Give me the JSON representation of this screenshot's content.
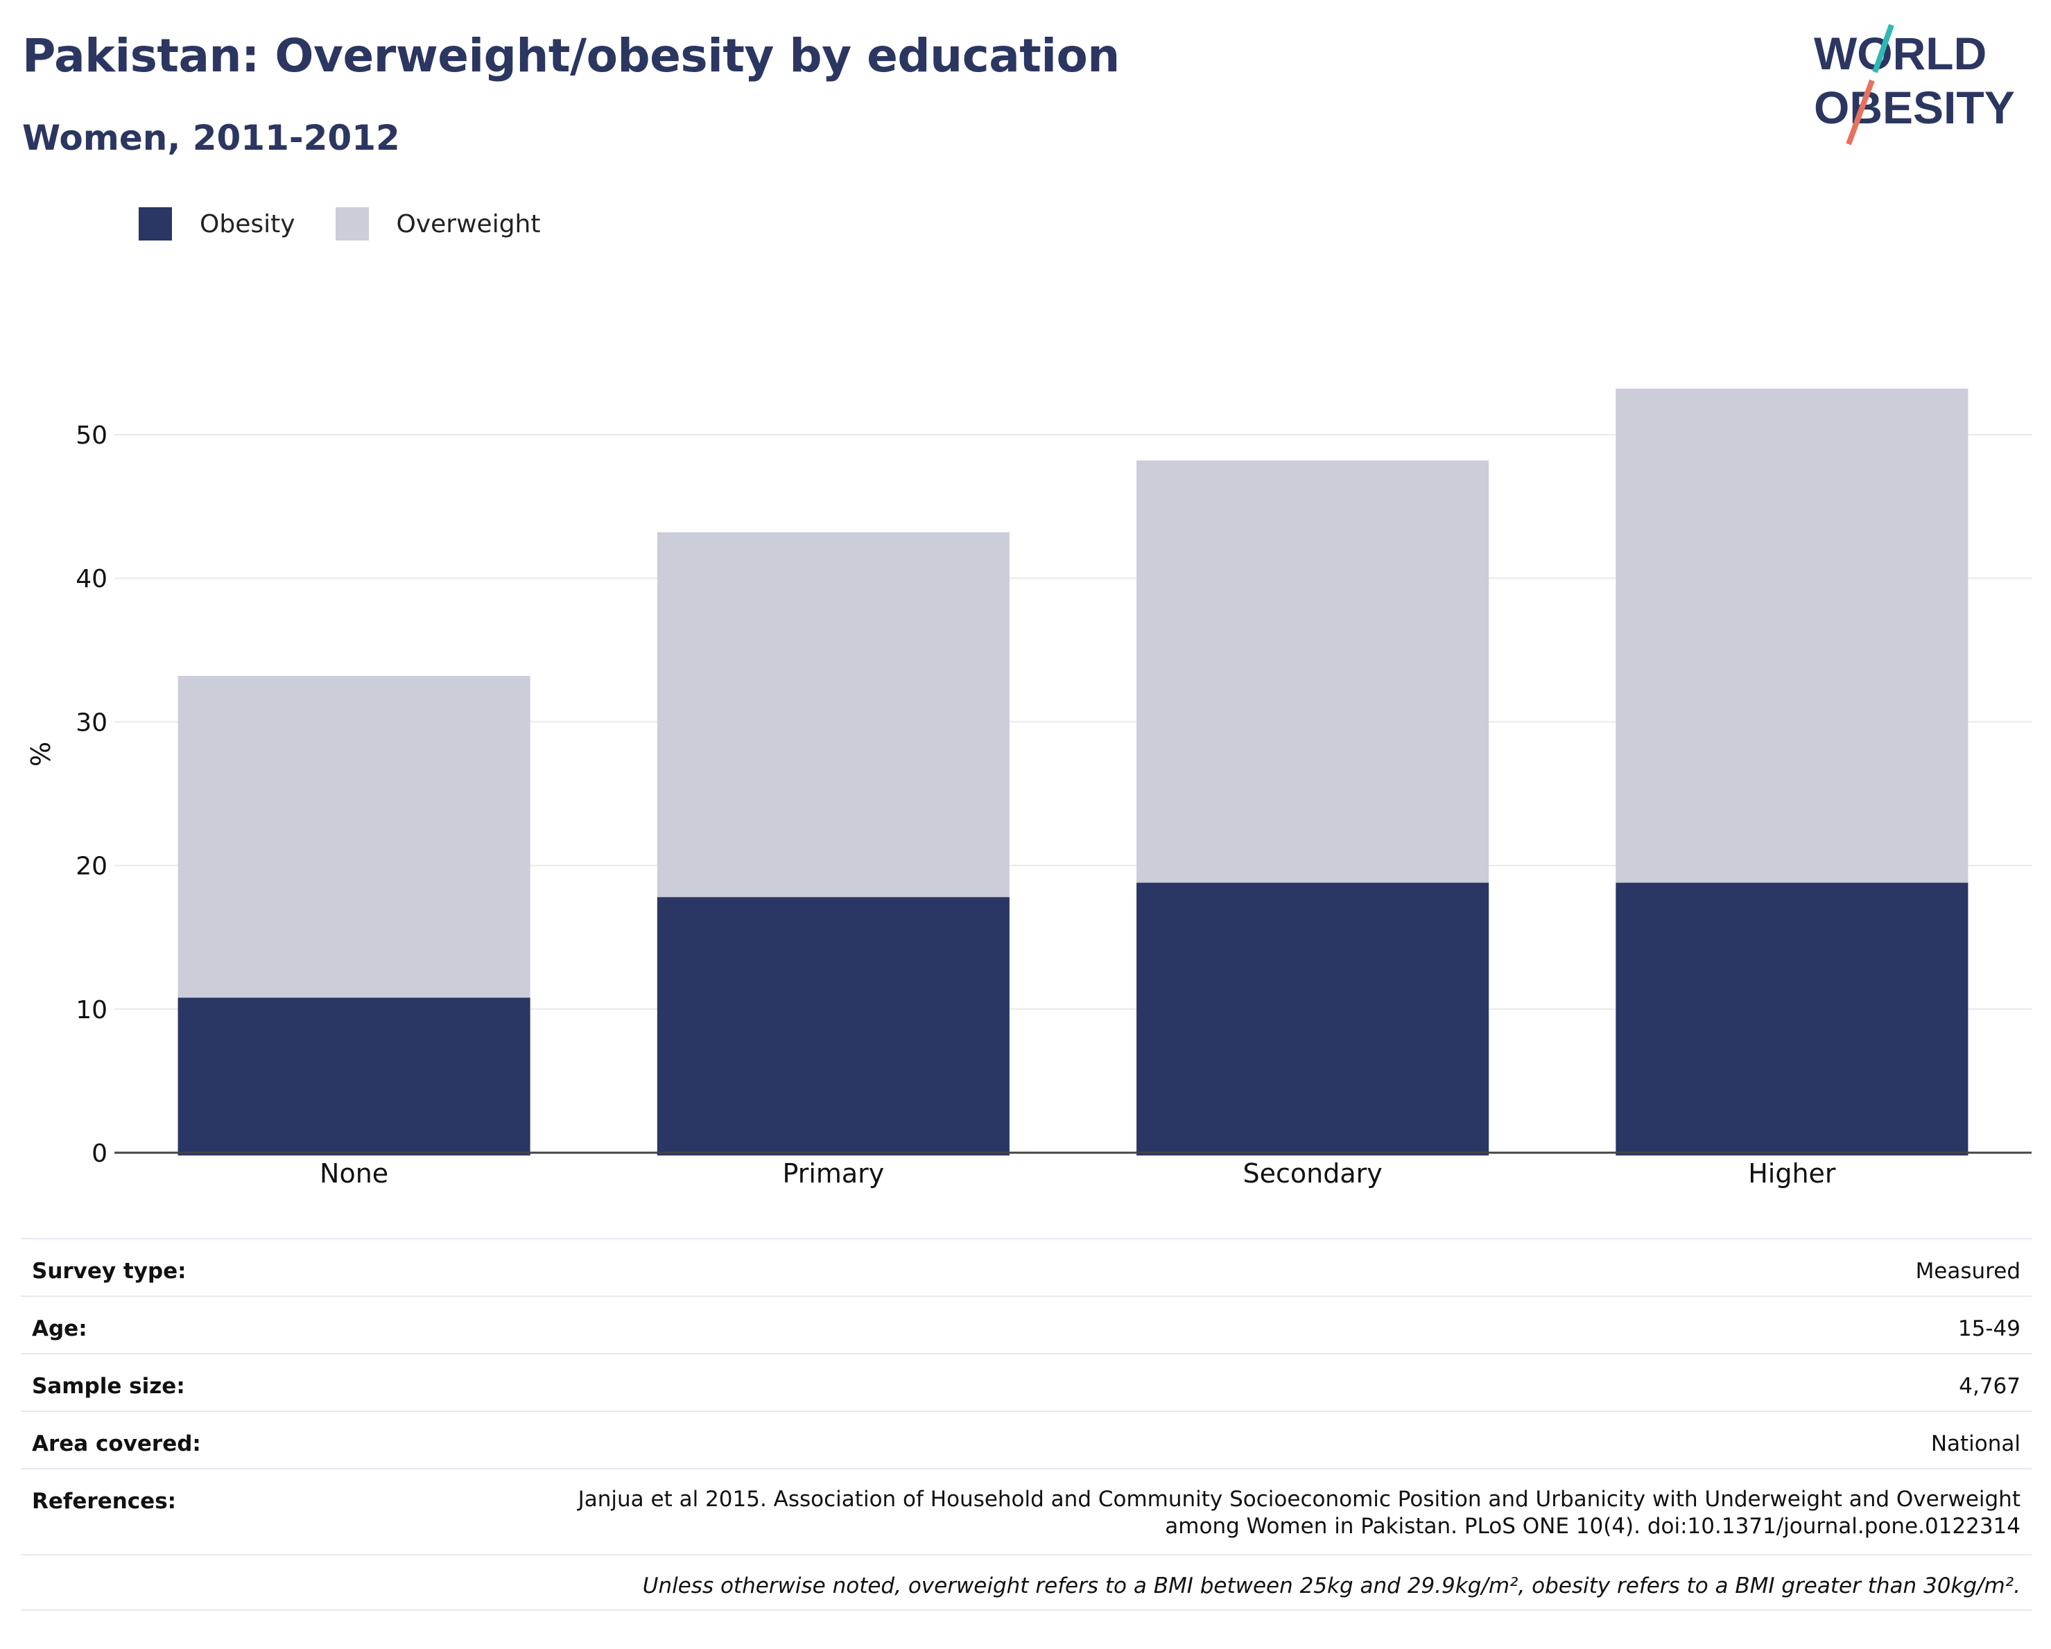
{
  "title": "Pakistan: Overweight/obesity by education",
  "subtitle": "Women, 2011-2012",
  "logo": {
    "line1": "WORLD",
    "line2": "OBESITY"
  },
  "colors": {
    "obesity": "#2a3663",
    "overweight": "#cbcdd8",
    "title": "#2b3661",
    "logo_teal": "#2fb8b4",
    "logo_coral": "#e8705e"
  },
  "legend": [
    {
      "label": "Obesity",
      "color": "#2a3663"
    },
    {
      "label": "Overweight",
      "color": "#cbcdd8"
    }
  ],
  "chart_data": {
    "type": "bar",
    "stacked": true,
    "categories": [
      "None",
      "Primary",
      "Secondary",
      "Higher"
    ],
    "series": [
      {
        "name": "Obesity",
        "values": [
          10.8,
          17.8,
          18.8,
          18.8
        ]
      },
      {
        "name": "Overweight",
        "values": [
          22.4,
          25.4,
          29.4,
          34.4
        ]
      }
    ],
    "totals": [
      33.2,
      43.2,
      48.2,
      53.2
    ],
    "xlabel": "",
    "ylabel": "%",
    "ylim": [
      0,
      57
    ],
    "yticks": [
      0,
      10,
      20,
      30,
      40,
      50
    ],
    "grid": true,
    "legend_position": "top-left"
  },
  "meta": {
    "rows": [
      {
        "label": "Survey type:",
        "value": "Measured"
      },
      {
        "label": "Age:",
        "value": "15-49"
      },
      {
        "label": "Sample size:",
        "value": "4,767"
      },
      {
        "label": "Area covered:",
        "value": "National"
      }
    ],
    "references_label": "References:",
    "references_line1": "Janjua et al 2015. Association of Household and Community Socioeconomic Position and Urbanicity with Underweight and Overweight",
    "references_line2": "among Women in Pakistan. PLoS ONE 10(4). doi:10.1371/journal.pone.0122314",
    "note": "Unless otherwise noted, overweight refers to a BMI between 25kg and 29.9kg/m², obesity refers to a BMI greater than 30kg/m²."
  }
}
